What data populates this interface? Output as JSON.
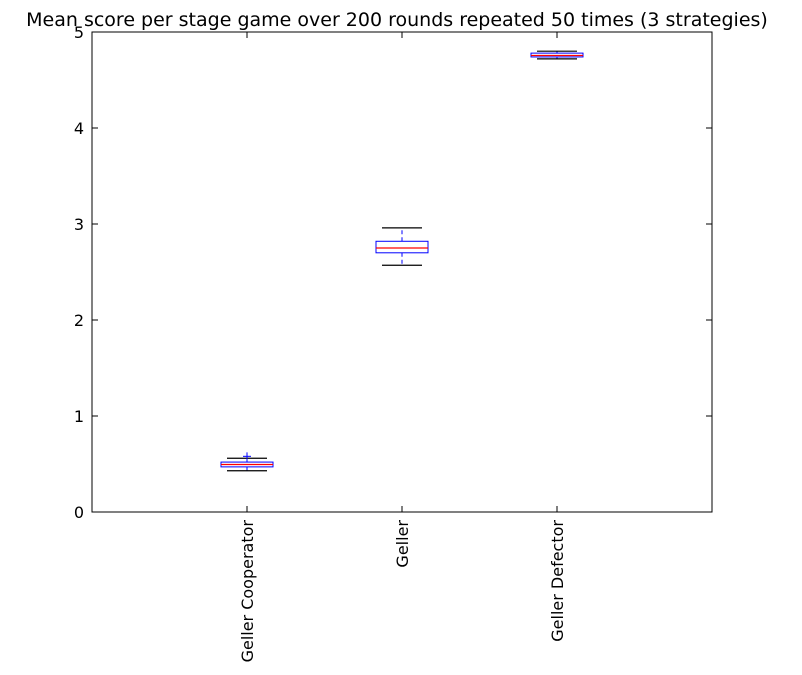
{
  "chart_data": {
    "type": "box",
    "title": "Mean score per stage game over 200 rounds repeated 50 times (3 strategies)",
    "xlabel": "",
    "ylabel": "",
    "ylim": [
      0,
      5
    ],
    "yticks": [
      0,
      1,
      2,
      3,
      4,
      5
    ],
    "grid": false,
    "categories": [
      "Geller Cooperator",
      "Geller",
      "Geller Defector"
    ],
    "boxes": [
      {
        "whislo": 0.43,
        "q1": 0.47,
        "med": 0.495,
        "q3": 0.52,
        "whishi": 0.56,
        "fliers": [
          0.58
        ]
      },
      {
        "whislo": 2.57,
        "q1": 2.7,
        "med": 2.75,
        "q3": 2.82,
        "whishi": 2.96,
        "fliers": []
      },
      {
        "whislo": 4.72,
        "q1": 4.74,
        "med": 4.755,
        "q3": 4.78,
        "whishi": 4.8,
        "fliers": []
      }
    ],
    "colors": {
      "box": "#0000ff",
      "median": "#ff0000",
      "whisker_cap": "#000000",
      "flier": "#0000ff",
      "axes": "#000000"
    }
  }
}
